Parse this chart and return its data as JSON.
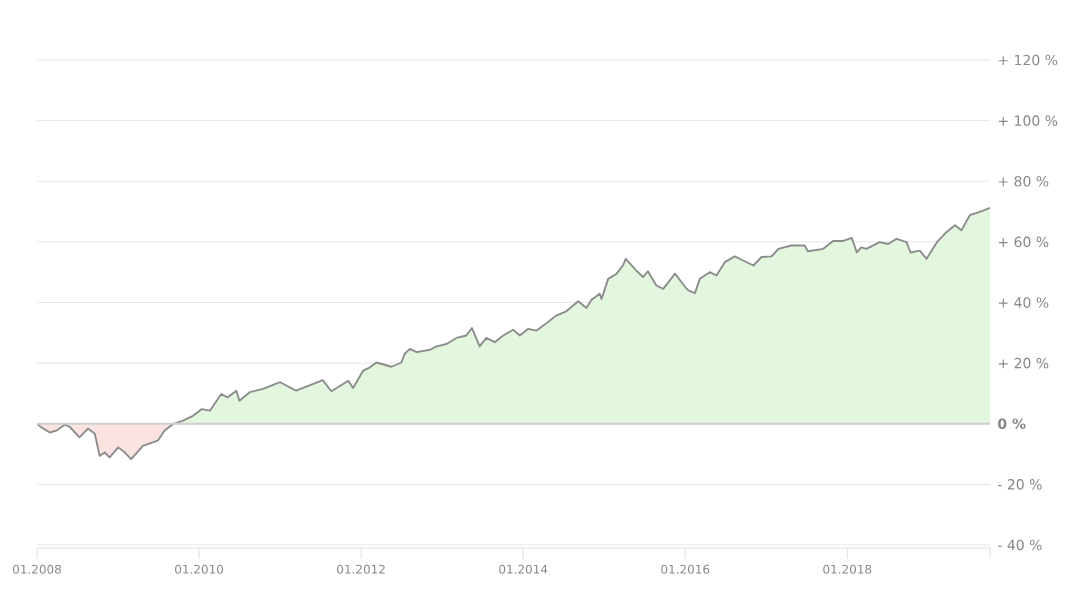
{
  "chart_data": {
    "type": "area",
    "grid": "y",
    "xlim": [
      "2008-01-01",
      "2019-10-06"
    ],
    "xticks": [
      {
        "value": "2008-01-01",
        "label": "01.2008"
      },
      {
        "value": "2010-01-01",
        "label": "01.2010"
      },
      {
        "value": "2012-01-01",
        "label": "01.2012"
      },
      {
        "value": "2014-01-01",
        "label": "01.2014"
      },
      {
        "value": "2016-01-01",
        "label": "01.2016"
      },
      {
        "value": "2018-01-01",
        "label": "01.2018"
      },
      {
        "value": "2019-10-06",
        "label": null
      }
    ],
    "ylim": [
      -41,
      120
    ],
    "yticks": [
      {
        "value": -40,
        "label": "- 40 %"
      },
      {
        "value": -20,
        "label": "- 20 %"
      },
      {
        "value": 0,
        "label": "**0 %**"
      },
      {
        "value": 20,
        "label": "+ 20 %"
      },
      {
        "value": 40,
        "label": "+ 40 %"
      },
      {
        "value": 60,
        "label": "+ 60 %"
      },
      {
        "value": 80,
        "label": "+ 80 %"
      },
      {
        "value": 100,
        "label": "+ 100 %"
      },
      {
        "value": 120,
        "label": "+ 120 %"
      }
    ],
    "ref_lines": [
      {
        "axis": "y",
        "value": 0,
        "color": "#cfcfcf"
      }
    ],
    "series": [
      {
        "color": "#8c8c8c",
        "colors": [
          "#e3f7df",
          "#e3f7df",
          "#e3f7df",
          "#e3f7df",
          "#e3f7df",
          "#e3f7df",
          "#e3f7df",
          "#e3f7df",
          "#e3f7df",
          "#e3f7df",
          "#e3f7df",
          "#e3f7df",
          "#e3f7df",
          "#e3f7df",
          "#e3f7df",
          "#e3f7df",
          "#e3f7df",
          "#e3f7df",
          "#e3f7df",
          "#e3f7df",
          "#e3f7df",
          "#e3f7df",
          "#e3f7df",
          "#e3f7df",
          "#e3f7df",
          "#e3f7df",
          "#e3f7df",
          "#e3f7df",
          "#e3f7df",
          "#e3f7df",
          "#e3f7df",
          "#e3f7df",
          "#e3f7df",
          "#e3f7df",
          "#e3f7df",
          "#e3f7df",
          "#e3f7df",
          "#e3f7df",
          "#e3f7df",
          "#e3f7df",
          "#e3f7df",
          "#e3f7df",
          "#e3f7df",
          "#e3f7df",
          "#e3f7df",
          "#e3f7df",
          "#e3f7df",
          "#e3f7df",
          "#e3f7df",
          "#e3f7df",
          "#e3f7df",
          "#e3f7df",
          "#e3f7df",
          "#e3f7df",
          "#e3f7df",
          "#e3f7df",
          "#e3f7df",
          "#e3f7df",
          "#e3f7df",
          "#e3f7df",
          "#e3f7df",
          "#e3f7df",
          "#e3f7df",
          "#e3f7df",
          "#e3f7df",
          "#e3f7df",
          "#e3f7df",
          "#e3f7df",
          "#e3f7df",
          "#e3f7df",
          "#e3f7df",
          "#e3f7df",
          "#e3f7df",
          "#e3f7df",
          "#e3f7df",
          "#e3f7df",
          "#e3f7df",
          "#e3f7df",
          "#e3f7df",
          "#e3f7df",
          "#e3f7df",
          "#e3f7df",
          "#e3f7df",
          "#e3f7df",
          "#e3f7df",
          "#e3f7df",
          "#e3f7df",
          "#e3f7df",
          "#e3f7df",
          "#e3f7df",
          "#e3f7df",
          "#e3f7df",
          "#e3f7df",
          "#e3f7df",
          "#e3f7df",
          "#e3f7df",
          "#e3f7df",
          "#e3f7df",
          "#e3f7df",
          "#e3f7df",
          "#e3f7df",
          "#e3f7df",
          "#e3f7df",
          "#e3f7df",
          "#e3f7df",
          "#e3f7df",
          "#e3f7df",
          "#e3f7df",
          "#e3f7df",
          "#e3f7df",
          "#e3f7df",
          "#e3f7df",
          "#e3f7df"
        ],
        "x": [
          "2008-01-01",
          "2008-01-21",
          "2008-02-28",
          "2008-03-28",
          "2008-05-05",
          "2008-05-27",
          "2008-07-11",
          "2008-08-18",
          "2008-09-18",
          "2008-10-10",
          "2008-11-02",
          "2008-11-24",
          "2009-01-02",
          "2009-02-01",
          "2009-03-01",
          "2009-04-23",
          "2009-06-29",
          "2009-07-29",
          "2009-09-06",
          "2009-10-20",
          "2009-12-05",
          "2010-01-12",
          "2010-02-19",
          "2010-04-11",
          "2010-05-10",
          "2010-06-18",
          "2010-07-02",
          "2010-08-17",
          "2010-10-16",
          "2011-01-01",
          "2011-03-14",
          "2011-05-28",
          "2011-07-12",
          "2011-08-20",
          "2011-11-04",
          "2011-11-26",
          "2012-01-10",
          "2012-02-10",
          "2012-03-10",
          "2012-05-17",
          "2012-07-01",
          "2012-07-16",
          "2012-08-08",
          "2012-09-08",
          "2012-11-07",
          "2012-12-07",
          "2013-01-21",
          "2013-03-06",
          "2013-04-20",
          "2013-05-15",
          "2013-06-19",
          "2013-07-19",
          "2013-08-26",
          "2013-10-03",
          "2013-11-17",
          "2013-12-17",
          "2014-01-24",
          "2014-03-01",
          "2014-04-08",
          "2014-05-30",
          "2014-07-14",
          "2014-09-06",
          "2014-10-13",
          "2014-11-05",
          "2014-12-12",
          "2014-12-20",
          "2015-01-19",
          "2015-02-26",
          "2015-03-26",
          "2015-04-08",
          "2015-05-25",
          "2015-06-25",
          "2015-07-17",
          "2015-08-24",
          "2015-09-24",
          "2015-11-16",
          "2016-01-01",
          "2016-01-15",
          "2016-02-14",
          "2016-03-07",
          "2016-04-21",
          "2016-05-21",
          "2016-06-28",
          "2016-08-12",
          "2016-09-12",
          "2016-11-04",
          "2016-12-11",
          "2017-01-25",
          "2017-02-25",
          "2017-04-24",
          "2017-06-23",
          "2017-07-08",
          "2017-09-15",
          "2017-10-29",
          "2017-12-14",
          "2018-01-21",
          "2018-02-13",
          "2018-03-05",
          "2018-03-28",
          "2018-05-27",
          "2018-07-04",
          "2018-08-11",
          "2018-09-25",
          "2018-10-13",
          "2018-11-24",
          "2018-12-24",
          "2019-02-09",
          "2019-03-23",
          "2019-05-01",
          "2019-05-30",
          "2019-07-07",
          "2019-08-21",
          "2019-10-06"
        ],
        "values": [
          0,
          -1.2,
          -2.9,
          -2.3,
          -0.3,
          -1,
          -4.5,
          -1.6,
          -3.3,
          -10.6,
          -9.5,
          -11.1,
          -7.8,
          -9.5,
          -11.7,
          -7.3,
          -5.6,
          -2.3,
          -0.1,
          1,
          2.6,
          4.8,
          4.3,
          9.8,
          8.7,
          10.9,
          7.6,
          10.4,
          11.5,
          13.7,
          10.9,
          13.1,
          14.4,
          10.7,
          14.2,
          11.8,
          17.5,
          18.6,
          20.2,
          18.8,
          20.2,
          23.1,
          24.7,
          23.6,
          24.4,
          25.5,
          26.3,
          28.3,
          29.1,
          31.6,
          25.5,
          28.3,
          26.9,
          29.1,
          31.0,
          29.1,
          31.3,
          30.7,
          32.7,
          35.7,
          37.1,
          40.4,
          38.2,
          40.9,
          42.9,
          41.2,
          47.8,
          49.5,
          52.2,
          54.4,
          50.6,
          48.4,
          50.3,
          45.6,
          44.5,
          49.5,
          45.1,
          44.0,
          43.1,
          47.8,
          50,
          48.9,
          53.3,
          55.2,
          54.1,
          52.2,
          55,
          55.2,
          57.7,
          58.8,
          58.8,
          56.9,
          57.7,
          60.3,
          60.3,
          61.3,
          56.5,
          58.2,
          57.7,
          59.9,
          59.3,
          61,
          59.9,
          56.5,
          57.1,
          54.4,
          59.9,
          63.2,
          65.5,
          63.8,
          68.8,
          69.9,
          71.2
        ]
      },
      {
        "color": "#fae3e1",
        "x": [
          "2008-01-01",
          "2008-01-21",
          "2008-02-28",
          "2008-03-28",
          "2008-05-05",
          "2008-05-27",
          "2008-07-11",
          "2008-08-18",
          "2008-09-18",
          "2008-10-10",
          "2008-11-02",
          "2008-11-24",
          "2009-01-02",
          "2009-02-01",
          "2009-03-01",
          "2009-04-23",
          "2009-06-29",
          "2009-07-29",
          "2009-09-06"
        ],
        "values": [
          0,
          -1.2,
          -2.9,
          -2.3,
          -0.3,
          -1,
          -4.5,
          -1.6,
          -3.3,
          -10.6,
          -9.5,
          -11.1,
          -7.8,
          -9.5,
          -11.7,
          -7.3,
          -5.6,
          -2.3,
          -0.1
        ]
      }
    ]
  }
}
